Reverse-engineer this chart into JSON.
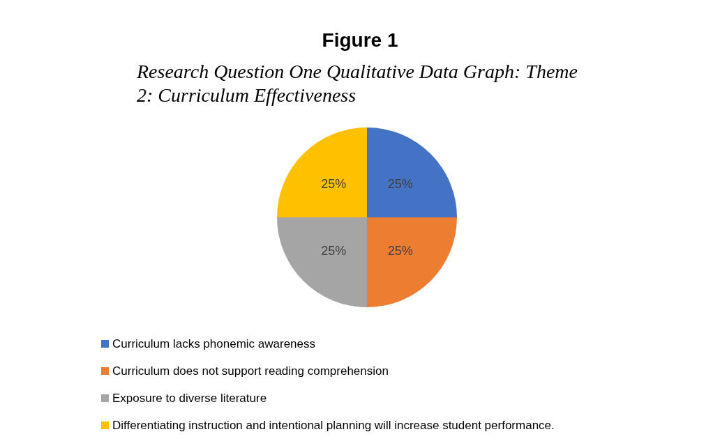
{
  "chart_data": {
    "type": "pie",
    "title": "Figure 1",
    "subtitle": "Research Question One Qualitative Data Graph: Theme 2: Curriculum Effectiveness",
    "categories": [
      "Curriculum lacks phonemic awareness",
      "Curriculum does not support reading comprehension",
      "Exposure to diverse literature",
      "Differentiating instruction and intentional planning will increase student performance."
    ],
    "values": [
      25,
      25,
      25,
      25
    ],
    "colors": [
      "#4472c4",
      "#ed7d31",
      "#a5a5a5",
      "#ffc000"
    ],
    "value_labels": [
      "25%",
      "25%",
      "25%",
      "25%"
    ],
    "legend": "bottom left"
  }
}
